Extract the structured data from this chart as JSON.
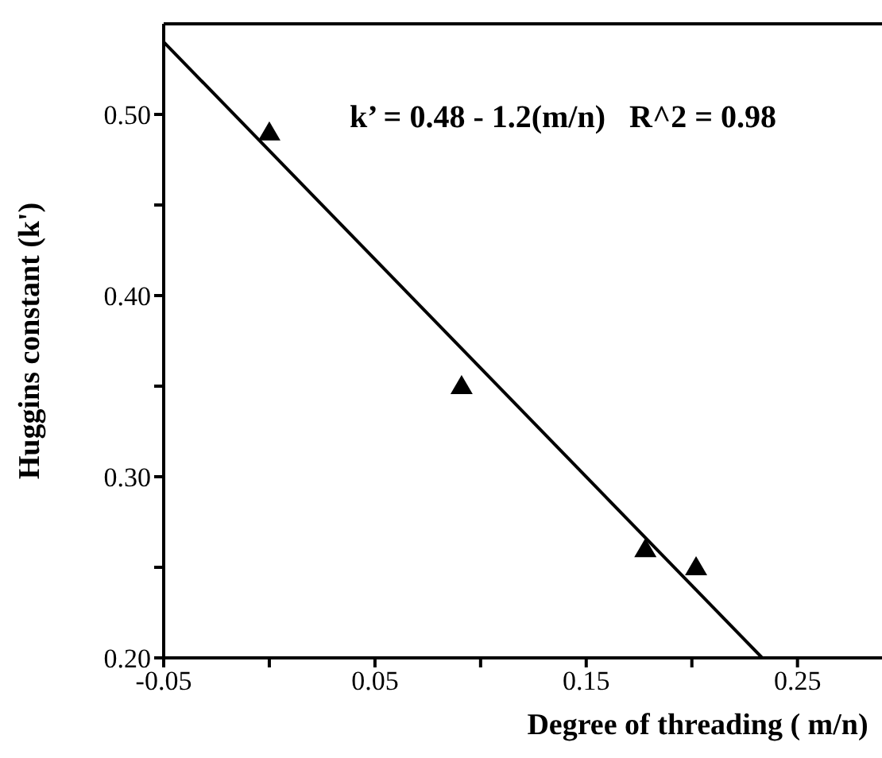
{
  "chart_data": {
    "type": "scatter",
    "xlabel": "Degree of threading ( m/n)",
    "ylabel": "Huggins  constant (k')",
    "annotations": [
      "k’ = 0.48 - 1.2(m/n)   R^2 = 0.98"
    ],
    "series": [
      {
        "color": "#000000",
        "marker": "triangle",
        "x": [
          0.0,
          0.091,
          0.178,
          0.202
        ],
        "values": [
          0.49,
          0.35,
          0.26,
          0.25
        ]
      },
      {
        "type": "line",
        "color": "#000000",
        "marker": "none",
        "x": [
          -0.05,
          0.2333
        ],
        "values": [
          0.54,
          0.2
        ]
      }
    ],
    "xlim": [
      -0.05,
      0.29
    ],
    "ylim": [
      0.2,
      0.55
    ],
    "xticks": [
      -0.05,
      {
        "value": 0,
        "label": null
      },
      0.05,
      {
        "value": 0.1,
        "label": null
      },
      0.15,
      {
        "value": 0.2,
        "label": null
      },
      0.25
    ],
    "yticks": [
      {
        "value": 0.2,
        "label": "0.20"
      },
      {
        "value": 0.25,
        "label": null
      },
      {
        "value": 0.3,
        "label": "0.30"
      },
      {
        "value": 0.35,
        "label": null
      },
      {
        "value": 0.4,
        "label": "0.40"
      },
      {
        "value": 0.45,
        "label": null
      },
      {
        "value": 0.5,
        "label": "0.50"
      }
    ]
  }
}
